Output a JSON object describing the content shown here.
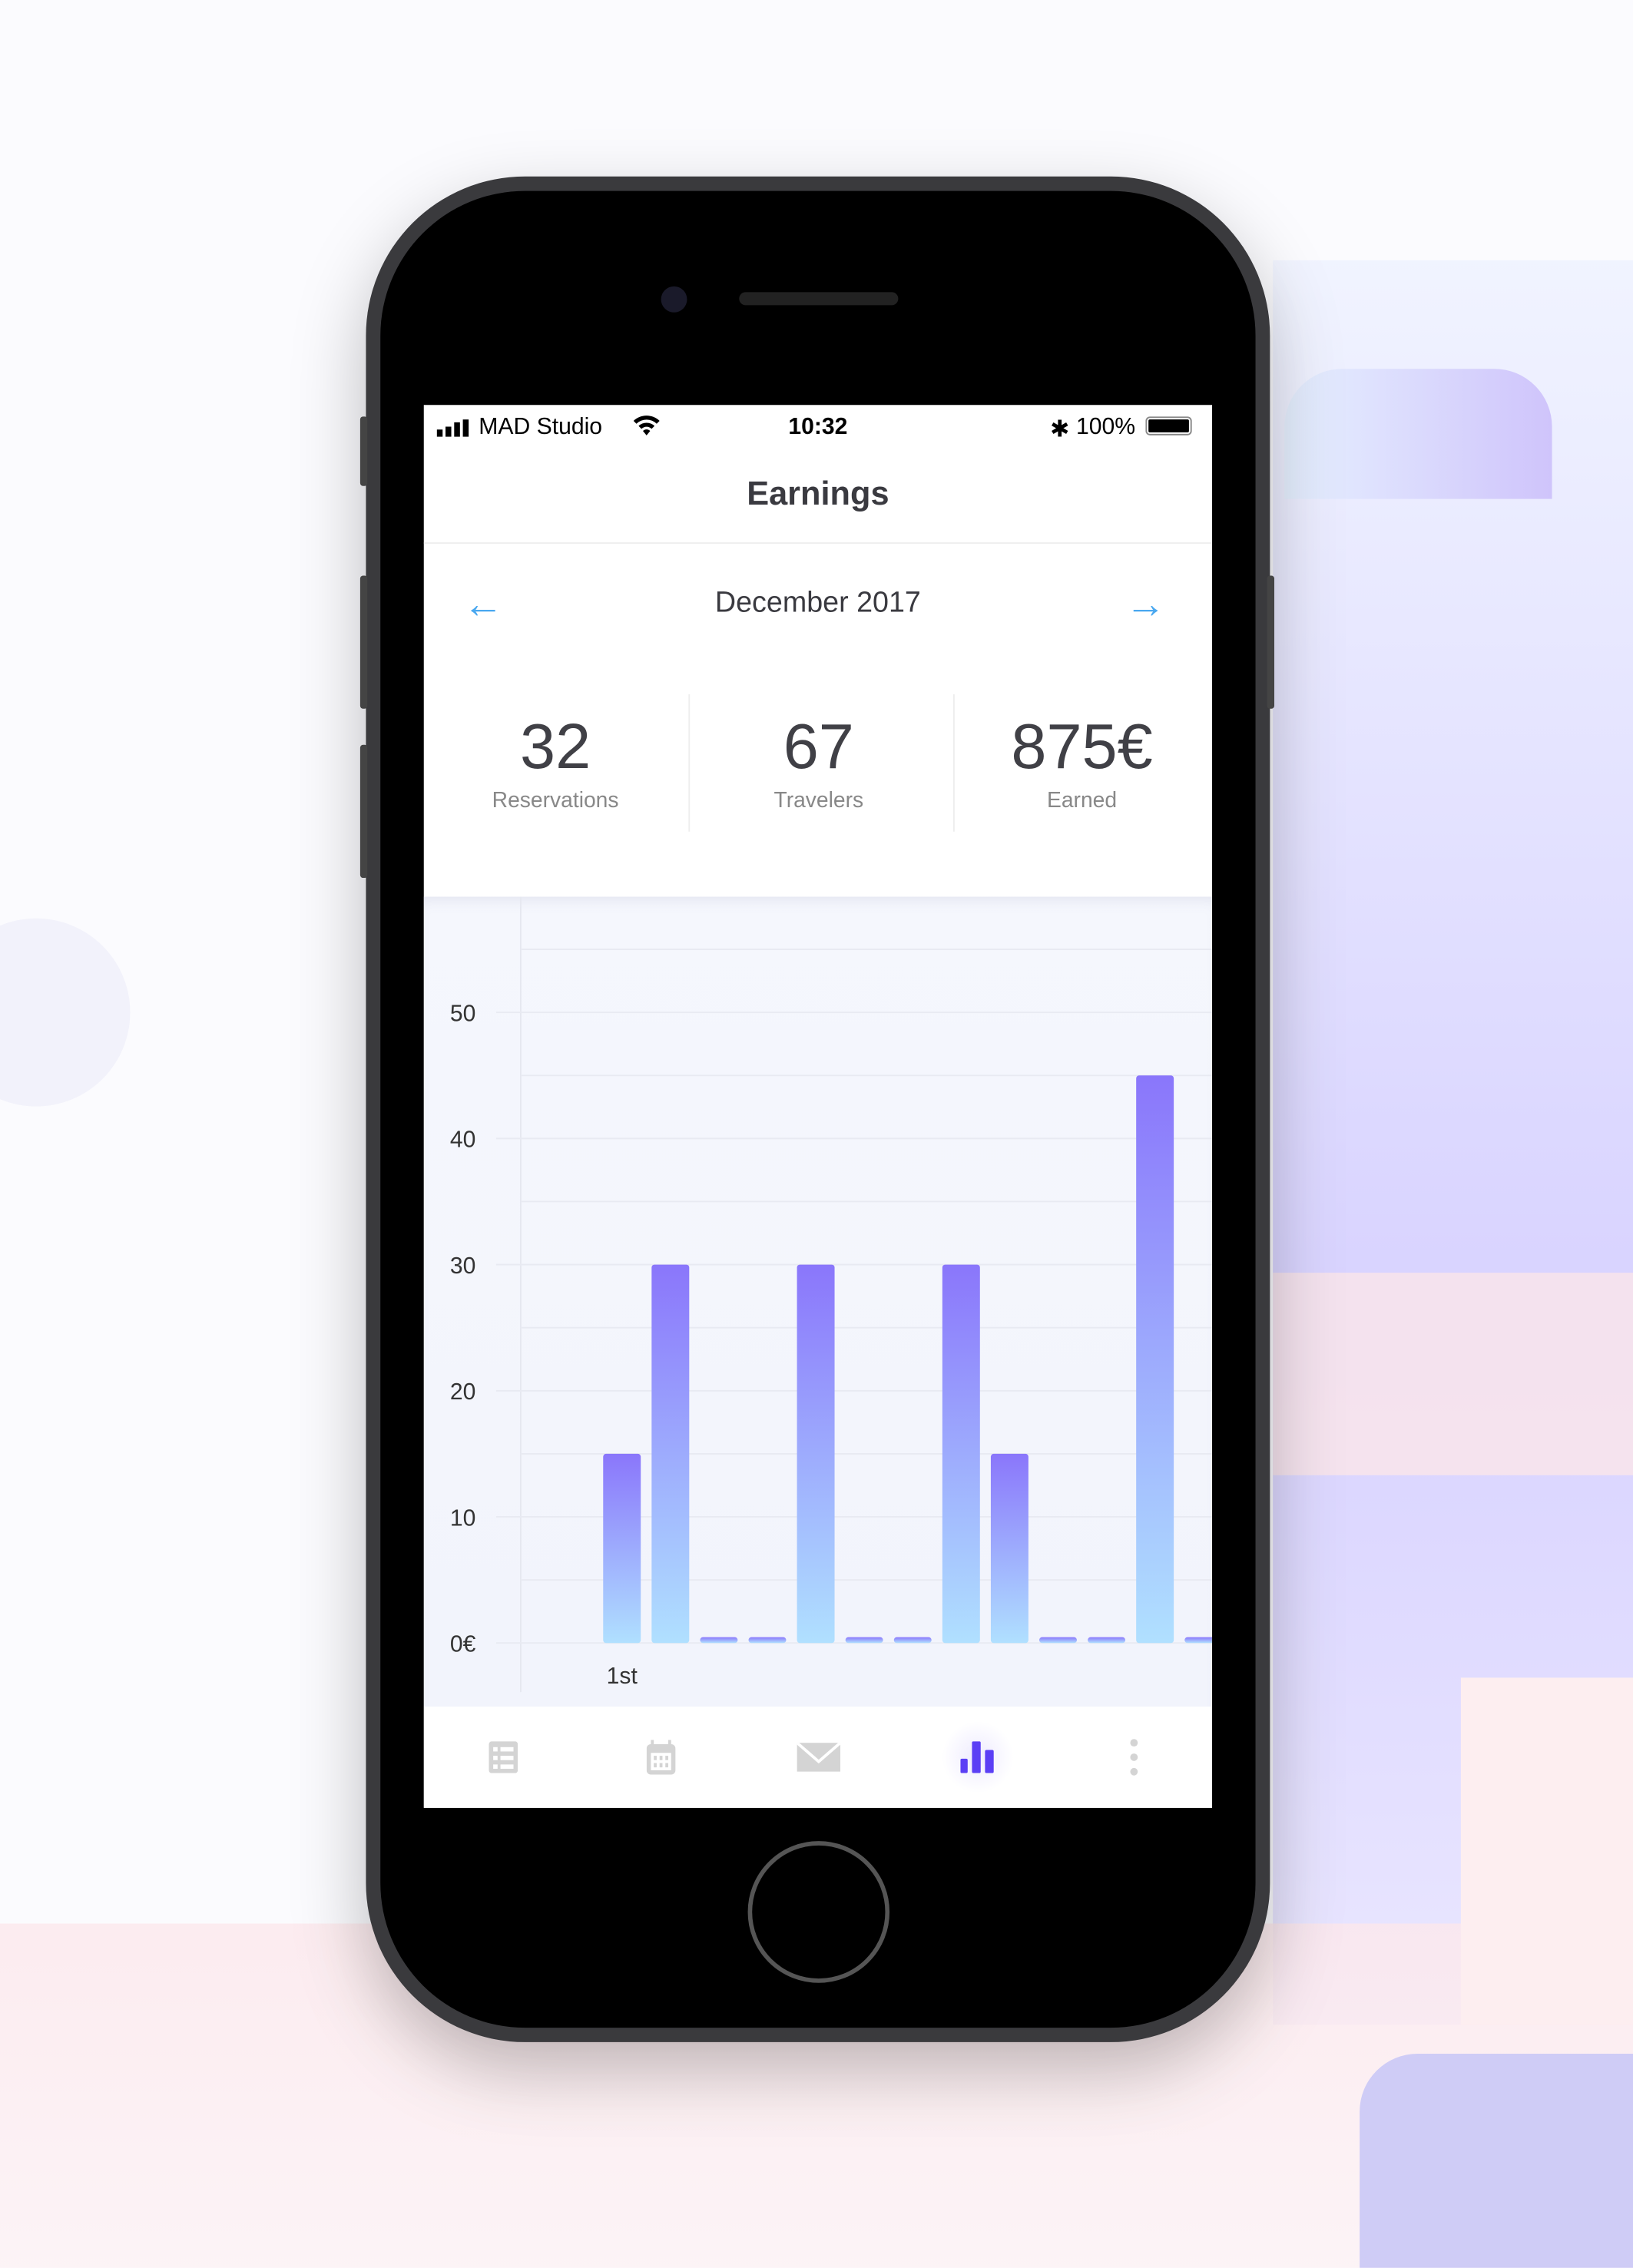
{
  "status_bar": {
    "carrier": "MAD Studio",
    "time": "10:32",
    "battery": "100%",
    "icons": [
      "signal-icon",
      "wifi-icon",
      "bluetooth-icon",
      "battery-icon"
    ]
  },
  "header": {
    "title": "Earnings"
  },
  "month_nav": {
    "label": "December 2017",
    "prev_icon": "arrow-left-icon",
    "next_icon": "arrow-right-icon",
    "accent": "#4aa8f0"
  },
  "stats": [
    {
      "value": "32",
      "label": "Reservations"
    },
    {
      "value": "67",
      "label": "Travelers"
    },
    {
      "value": "875€",
      "label": "Earned"
    }
  ],
  "chart_data": {
    "type": "bar",
    "categories": [
      "1st",
      "",
      "",
      "",
      "",
      "",
      "",
      "",
      "",
      "",
      "",
      "",
      ""
    ],
    "values": [
      15,
      30,
      0,
      0,
      30,
      0,
      0,
      30,
      15,
      0,
      0,
      45,
      0
    ],
    "ytick_labels": [
      "0€",
      "10",
      "20",
      "30",
      "40",
      "50"
    ],
    "ylim": [
      0,
      55
    ],
    "grid": true,
    "bar_gradient": [
      "#8a76fb",
      "#b0e0ff"
    ]
  },
  "tab_bar": {
    "items": [
      {
        "icon": "list-icon",
        "active": false
      },
      {
        "icon": "calendar-icon",
        "active": false
      },
      {
        "icon": "mail-icon",
        "active": false
      },
      {
        "icon": "bar-chart-icon",
        "active": true
      },
      {
        "icon": "more-icon",
        "active": false
      }
    ],
    "active_color": "#5b3ff5",
    "inactive_color": "#d4d4d4"
  }
}
